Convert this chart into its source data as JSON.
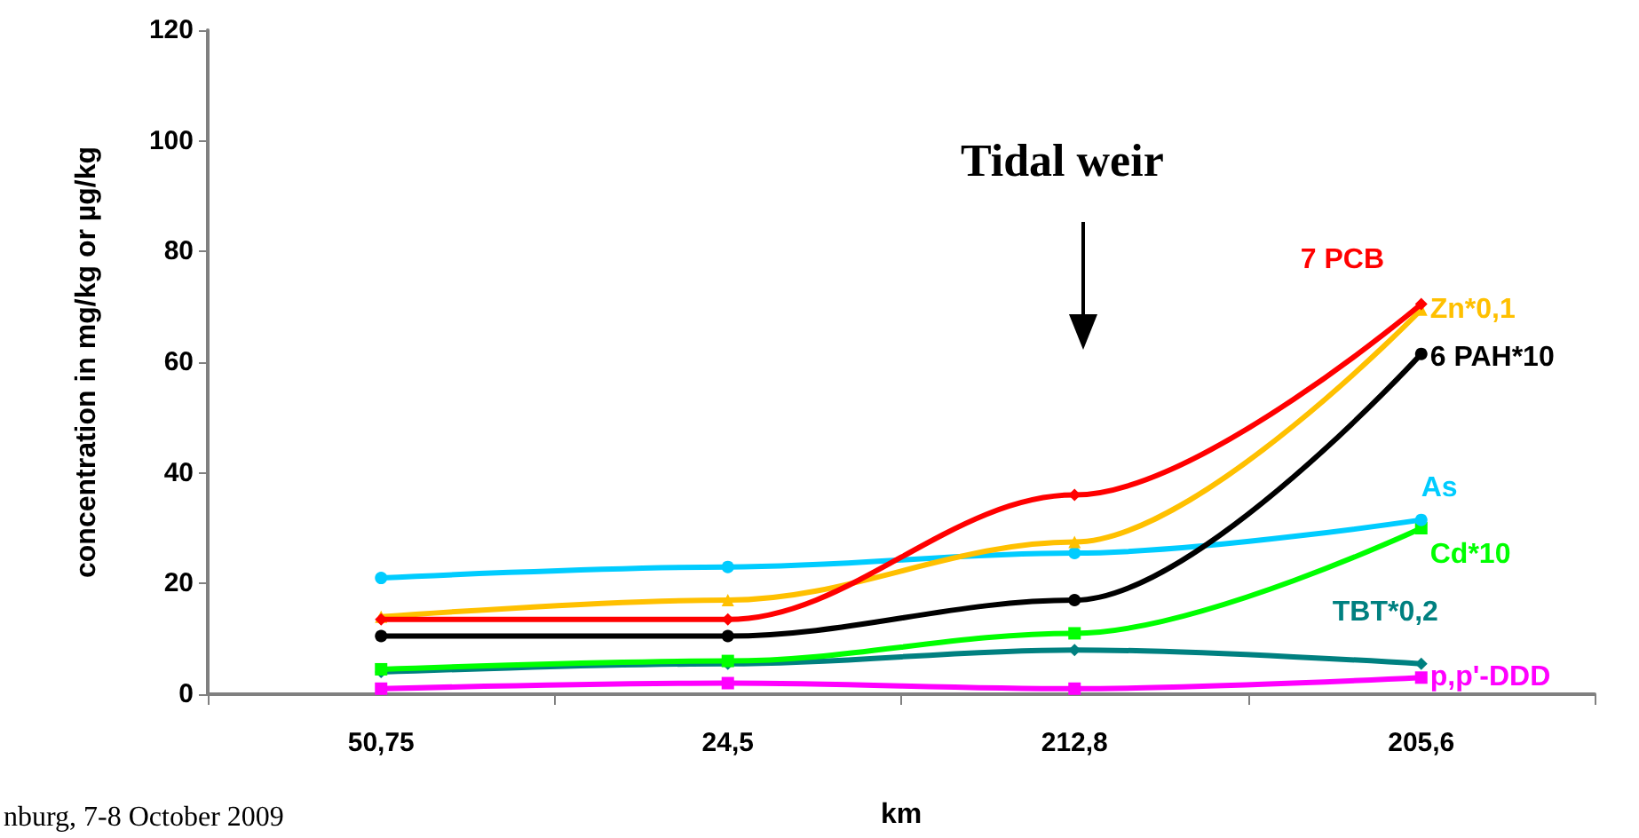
{
  "chart_data": {
    "type": "line",
    "xlabel": "km",
    "ylabel": "concentration in mg/kg or µg/kg",
    "categories": [
      "50,75",
      "24,5",
      "212,8",
      "205,6"
    ],
    "series": [
      {
        "name": "7 PCB",
        "color": "#ff0000",
        "marker": "diamond",
        "values": [
          13.5,
          13.5,
          36,
          70.5
        ]
      },
      {
        "name": "Zn*0,1",
        "color": "#ffc000",
        "marker": "triangle",
        "values": [
          14,
          17,
          27.5,
          69.5
        ]
      },
      {
        "name": "6 PAH*10",
        "color": "#000000",
        "marker": "circle",
        "values": [
          10.5,
          10.5,
          17,
          61.5
        ]
      },
      {
        "name": "As",
        "color": "#00ccff",
        "marker": "circle",
        "values": [
          21,
          23,
          25.5,
          31.5
        ]
      },
      {
        "name": "Cd*10",
        "color": "#00ff00",
        "marker": "square",
        "values": [
          4.5,
          6,
          11,
          30
        ]
      },
      {
        "name": "TBT*0,2",
        "color": "#008080",
        "marker": "diamond",
        "values": [
          4,
          5.5,
          8,
          5.5
        ]
      },
      {
        "name": "p,p'-DDD",
        "color": "#ff00ff",
        "marker": "square",
        "values": [
          1,
          2,
          1,
          3
        ]
      }
    ],
    "ylim": [
      0,
      120
    ],
    "yticks": [
      0,
      20,
      40,
      60,
      80,
      100,
      120
    ],
    "grid": false,
    "legend": false,
    "annotations": [
      "Tidal weir",
      "nburg, 7-8 October 2009"
    ]
  }
}
